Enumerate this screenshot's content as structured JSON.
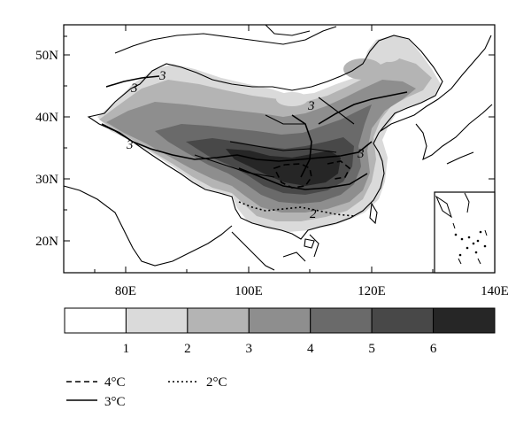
{
  "axes": {
    "y_ticks": [
      "50N",
      "40N",
      "30N",
      "20N"
    ],
    "x_ticks": [
      "80E",
      "100E",
      "120E",
      "140E"
    ]
  },
  "contour_labels": [
    "3",
    "3",
    "3",
    "3",
    "2"
  ],
  "colorbar": {
    "labels": [
      "1",
      "2",
      "3",
      "4",
      "5",
      "6"
    ],
    "colors": [
      "#ffffff",
      "#dadada",
      "#b4b4b4",
      "#8e8e8e",
      "#6a6a6a",
      "#484848",
      "#262626"
    ]
  },
  "legend": {
    "items": [
      {
        "label": "4°C",
        "style": "dashed"
      },
      {
        "label": "3°C",
        "style": "solid"
      },
      {
        "label": "2°C",
        "style": "dotted"
      }
    ]
  }
}
